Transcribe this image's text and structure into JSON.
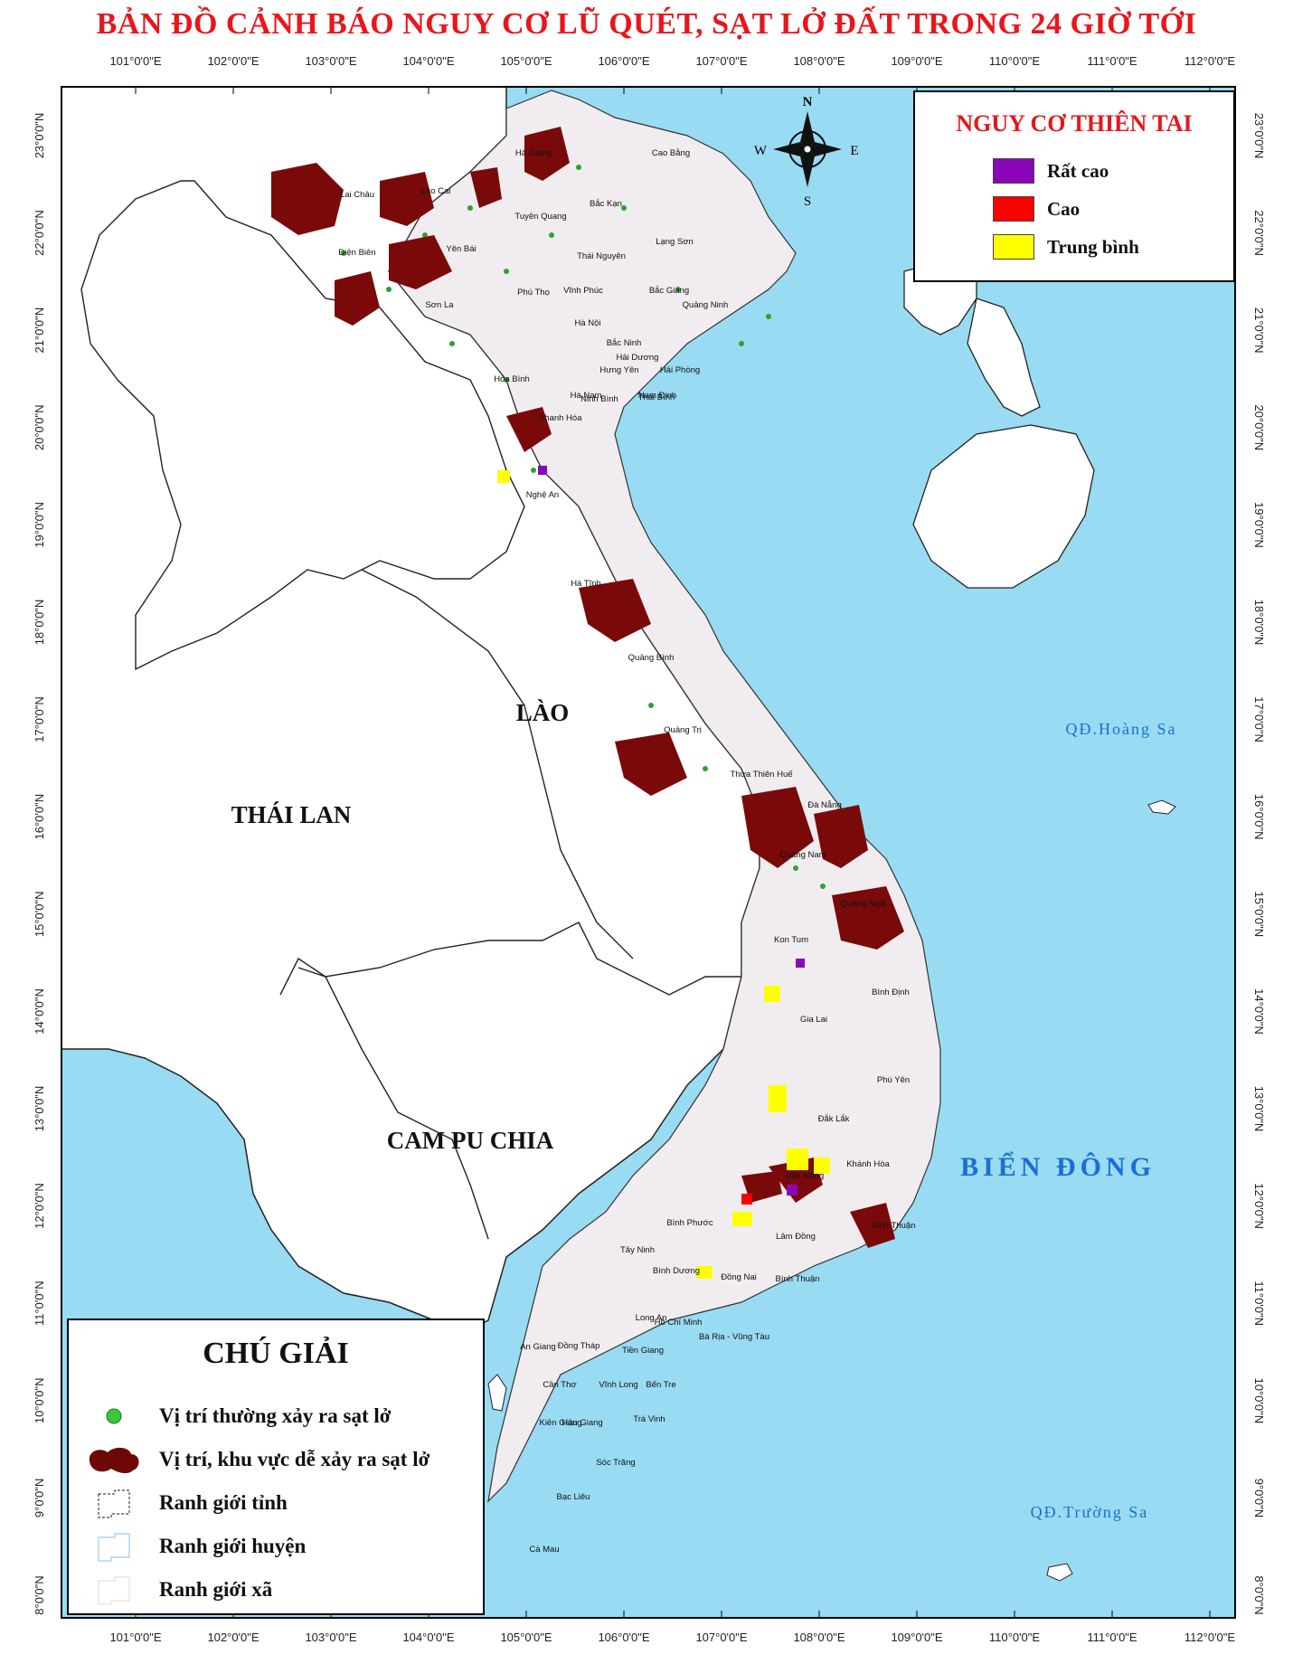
{
  "title": "BẢN ĐỒ CẢNH BÁO NGUY CƠ LŨ QUÉT, SẠT LỞ ĐẤT TRONG 24 GIỜ TỚI",
  "lon_labels": [
    "101°0'0\"E",
    "102°0'0\"E",
    "103°0'0\"E",
    "104°0'0\"E",
    "105°0'0\"E",
    "106°0'0\"E",
    "107°0'0\"E",
    "108°0'0\"E",
    "109°0'0\"E",
    "110°0'0\"E",
    "111°0'0\"E",
    "112°0'0\"E"
  ],
  "lat_labels": [
    "23°0'0\"N",
    "22°0'0\"N",
    "21°0'0\"N",
    "20°0'0\"N",
    "19°0'0\"N",
    "18°0'0\"N",
    "17°0'0\"N",
    "16°0'0\"N",
    "15°0'0\"N",
    "14°0'0\"N",
    "13°0'0\"N",
    "12°0'0\"N",
    "11°0'0\"N",
    "10°0'0\"N",
    "9°0'0\"N",
    "8°0'0\"N"
  ],
  "compass": {
    "n": "N",
    "s": "S",
    "e": "E",
    "w": "W"
  },
  "countries": {
    "laos": "LÀO",
    "thailand": "THÁI LAN",
    "cambodia": "CAM PU CHIA"
  },
  "sea_label": "BIỂN ĐÔNG",
  "islands": {
    "hoang_sa": "QĐ.Hoàng Sa",
    "truong_sa": "QĐ.Trường Sa"
  },
  "provinces": [
    "Hà Giang",
    "Cao Bằng",
    "Lai Châu",
    "Lào Cai",
    "Bắc Kạn",
    "Tuyên Quang",
    "Điện Biên",
    "Yên Bái",
    "Thái Nguyên",
    "Lạng Sơn",
    "Phú Thọ",
    "Vĩnh Phúc",
    "Bắc Giang",
    "Sơn La",
    "Quảng Ninh",
    "Hà Nội",
    "Bắc Ninh",
    "Hải Dương",
    "Hưng Yên",
    "Hải Phòng",
    "Hòa Bình",
    "Hà Nam",
    "Thái Bình",
    "Ninh Bình",
    "Nam Định",
    "Thanh Hóa",
    "Nghệ An",
    "Hà Tĩnh",
    "Quảng Bình",
    "Quảng Trị",
    "Thừa Thiên Huế",
    "Đà Nẵng",
    "Quảng Nam",
    "Quảng Ngãi",
    "Kon Tum",
    "Bình Định",
    "Gia Lai",
    "Phú Yên",
    "Đắk Lắk",
    "Khánh Hòa",
    "Đắk Nông",
    "Ninh Thuận",
    "Bình Phước",
    "Lâm Đồng",
    "Tây Ninh",
    "Bình Dương",
    "Đồng Nai",
    "Bình Thuận",
    "Long An",
    "Hồ Chí Minh",
    "An Giang",
    "Đồng Tháp",
    "Tiền Giang",
    "Bà Rịa - Vũng Tàu",
    "Cần Thơ",
    "Vĩnh Long",
    "Bến Tre",
    "Kiên Giang",
    "Hậu Giang",
    "Trà Vinh",
    "Sóc Trăng",
    "Bạc Liêu",
    "Cà Mau"
  ],
  "risk_legend": {
    "title": "NGUY CƠ THIÊN TAI",
    "items": [
      {
        "label": "Rất cao",
        "color": "#8a06b8"
      },
      {
        "label": "Cao",
        "color": "#ff0000"
      },
      {
        "label": "Trung bình",
        "color": "#ffff00"
      }
    ]
  },
  "legend": {
    "title": "CHÚ GIẢI",
    "items": [
      {
        "label": "Vị trí thường xảy ra sạt lở",
        "symbol": "green-dot"
      },
      {
        "label": "Vị trí, khu vực dễ xảy ra sạt lở",
        "symbol": "dark-red-blob"
      },
      {
        "label": "Ranh giới tỉnh",
        "symbol": "province-boundary"
      },
      {
        "label": "Ranh giới huyện",
        "symbol": "district-boundary"
      },
      {
        "label": "Ranh giới xã",
        "symbol": "commune-boundary"
      }
    ]
  },
  "colors": {
    "sea": "#98dbf2",
    "land_vn": "#f1ecef",
    "land_other": "#ffffff",
    "landslide": "#7a0a0a",
    "green_points": "#2aa52a",
    "title": "#e8161c",
    "sea_text": "#1b6fd1"
  }
}
